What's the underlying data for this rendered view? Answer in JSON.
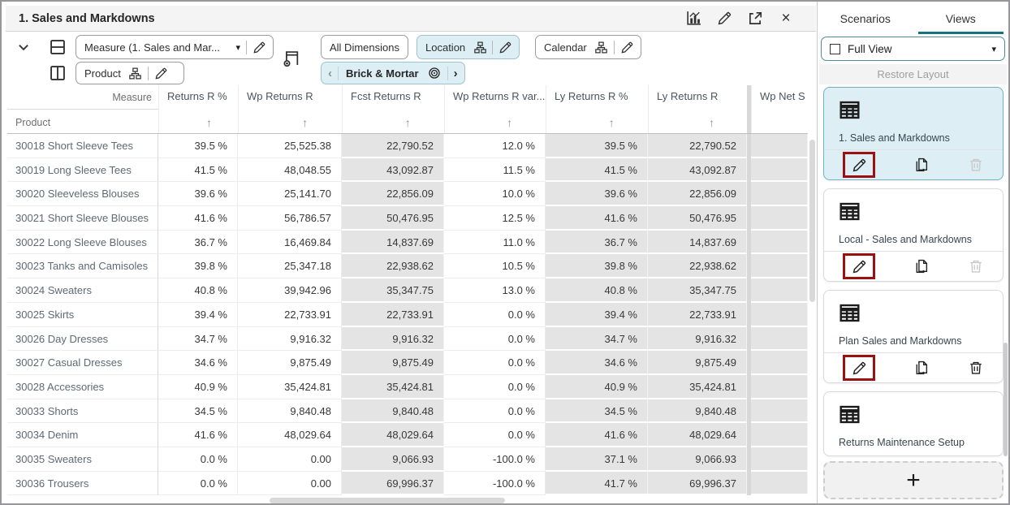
{
  "panel": {
    "title": "1. Sales and Markdowns"
  },
  "toolbar": {
    "measure_selector": "Measure (1. Sales and Mar...",
    "row_axis": "Product",
    "all_dimensions": "All Dimensions",
    "location": "Location",
    "calendar": "Calendar",
    "page_member": "Brick & Mortar"
  },
  "grid": {
    "corner_column_label": "Measure",
    "corner_row_label": "Product",
    "columns": [
      {
        "label": "Returns R %",
        "readonly": false
      },
      {
        "label": "Wp Returns R",
        "readonly": false
      },
      {
        "label": "Fcst Returns R",
        "readonly": true
      },
      {
        "label": "Wp Returns R var...",
        "readonly": false
      },
      {
        "label": "Ly Returns R %",
        "readonly": true
      },
      {
        "label": "Ly Returns R",
        "readonly": true
      },
      {
        "label": "Wp Net S",
        "readonly": true,
        "clipped": true
      }
    ],
    "rows": [
      {
        "product": "30018 Short Sleeve Tees",
        "values": [
          "39.5 %",
          "25,525.38",
          "22,790.52",
          "12.0 %",
          "39.5 %",
          "22,790.52",
          ""
        ]
      },
      {
        "product": "30019 Long Sleeve Tees",
        "values": [
          "41.5 %",
          "48,048.55",
          "43,092.87",
          "11.5 %",
          "41.5 %",
          "43,092.87",
          ""
        ]
      },
      {
        "product": "30020 Sleeveless Blouses",
        "values": [
          "39.6 %",
          "25,141.70",
          "22,856.09",
          "10.0 %",
          "39.6 %",
          "22,856.09",
          ""
        ]
      },
      {
        "product": "30021 Short Sleeve Blouses",
        "values": [
          "41.6 %",
          "56,786.57",
          "50,476.95",
          "12.5 %",
          "41.6 %",
          "50,476.95",
          ""
        ]
      },
      {
        "product": "30022 Long Sleeve Blouses",
        "values": [
          "36.7 %",
          "16,469.84",
          "14,837.69",
          "11.0 %",
          "36.7 %",
          "14,837.69",
          ""
        ]
      },
      {
        "product": "30023 Tanks and Camisoles",
        "values": [
          "39.8 %",
          "25,347.18",
          "22,938.62",
          "10.5 %",
          "39.8 %",
          "22,938.62",
          ""
        ]
      },
      {
        "product": "30024 Sweaters",
        "values": [
          "40.8 %",
          "39,942.96",
          "35,347.75",
          "13.0 %",
          "40.8 %",
          "35,347.75",
          ""
        ]
      },
      {
        "product": "30025 Skirts",
        "values": [
          "39.4 %",
          "22,733.91",
          "22,733.91",
          "0.0 %",
          "39.4 %",
          "22,733.91",
          ""
        ]
      },
      {
        "product": "30026 Day Dresses",
        "values": [
          "34.7 %",
          "9,916.32",
          "9,916.32",
          "0.0 %",
          "34.7 %",
          "9,916.32",
          ""
        ]
      },
      {
        "product": "30027 Casual Dresses",
        "values": [
          "34.6 %",
          "9,875.49",
          "9,875.49",
          "0.0 %",
          "34.6 %",
          "9,875.49",
          ""
        ]
      },
      {
        "product": "30028 Accessories",
        "values": [
          "40.9 %",
          "35,424.81",
          "35,424.81",
          "0.0 %",
          "40.9 %",
          "35,424.81",
          ""
        ]
      },
      {
        "product": "30033 Shorts",
        "values": [
          "34.5 %",
          "9,840.48",
          "9,840.48",
          "0.0 %",
          "34.5 %",
          "9,840.48",
          ""
        ]
      },
      {
        "product": "30034 Denim",
        "values": [
          "41.6 %",
          "48,029.64",
          "48,029.64",
          "0.0 %",
          "41.6 %",
          "48,029.64",
          ""
        ]
      },
      {
        "product": "30035 Sweaters",
        "values": [
          "0.0 %",
          "0.00",
          "9,066.93",
          "-100.0 %",
          "37.1 %",
          "9,066.93",
          ""
        ]
      },
      {
        "product": "30036 Trousers",
        "values": [
          "0.0 %",
          "0.00",
          "69,996.37",
          "-100.0 %",
          "41.7 %",
          "69,996.37",
          ""
        ]
      }
    ]
  },
  "sidebar": {
    "tabs": [
      {
        "label": "Scenarios",
        "active": false
      },
      {
        "label": "Views",
        "active": true
      }
    ],
    "view_selector": "Full View",
    "restore_layout": "Restore Layout",
    "cards": [
      {
        "title": "1. Sales and Markdowns",
        "selected": true,
        "trash_enabled": false,
        "pencil_boxed": true,
        "footer_visible": true
      },
      {
        "title": "Local - Sales and Markdowns",
        "selected": false,
        "trash_enabled": false,
        "pencil_boxed": true,
        "footer_visible": true
      },
      {
        "title": "Plan Sales and Markdowns",
        "selected": false,
        "trash_enabled": true,
        "pencil_boxed": true,
        "footer_visible": true
      },
      {
        "title": "Returns Maintenance Setup",
        "selected": false,
        "trash_enabled": false,
        "pencil_boxed": false,
        "footer_visible": false
      }
    ],
    "add_view_label": "+"
  },
  "icons": {
    "sort_ascending": "↑",
    "dropdown_caret": "▾",
    "close": "×",
    "breadcrumb_prev": "‹",
    "breadcrumb_next": "›"
  },
  "colors": {
    "accent_teal": "#15727e",
    "selection_bg": "#ddeef5",
    "selection_border": "#6fb3c4",
    "annotation_red": "#9b1010",
    "readonly_cell_bg": "#e4e4e4"
  }
}
